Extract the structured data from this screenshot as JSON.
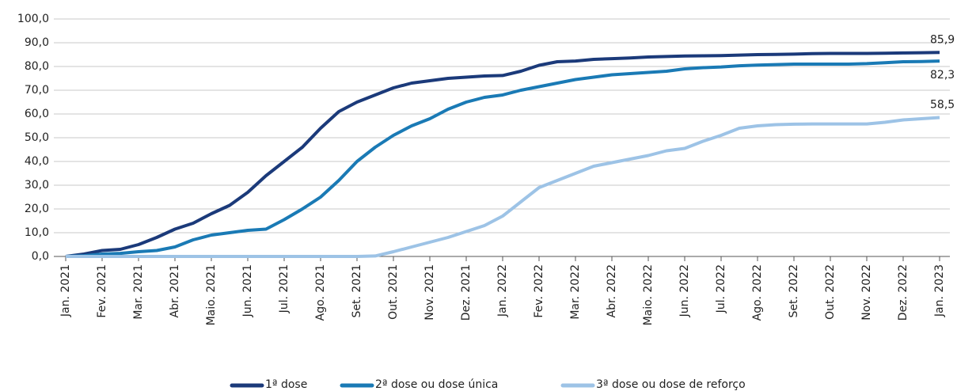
{
  "chart_data": {
    "type": "line",
    "categories": [
      "Jan. 2021",
      null,
      "Fev. 2021",
      null,
      "Mar. 2021",
      null,
      "Abr. 2021",
      null,
      "Maio. 2021",
      null,
      "Jun. 2021",
      null,
      "Jul. 2021",
      null,
      "Ago. 2021",
      null,
      "Set. 2021",
      null,
      "Out. 2021",
      null,
      "Nov. 2021",
      null,
      "Dez. 2021",
      null,
      "Jan. 2022",
      null,
      "Fev. 2022",
      null,
      "Mar. 2022",
      null,
      "Abr. 2022",
      null,
      "Maio. 2022",
      null,
      "Jun. 2022",
      null,
      "Jul. 2022",
      null,
      "Ago. 2022",
      null,
      "Set. 2022",
      null,
      "Out. 2022",
      null,
      "Nov. 2022",
      null,
      "Dez. 2022",
      null,
      "Jan. 2023"
    ],
    "series": [
      {
        "name": "1ª dose",
        "color": "#1b3a7a",
        "end_label": "85,9",
        "values": [
          0,
          1,
          2.5,
          3,
          5,
          8,
          11.5,
          14,
          18,
          21.5,
          27,
          34,
          40,
          46,
          54,
          61,
          65,
          68,
          71,
          73,
          74,
          75,
          75.5,
          76,
          76.2,
          78,
          80.5,
          82,
          82.3,
          83,
          83.3,
          83.6,
          84,
          84.2,
          84.4,
          84.5,
          84.6,
          84.8,
          85,
          85.1,
          85.2,
          85.4,
          85.5,
          85.5,
          85.5,
          85.6,
          85.7,
          85.8,
          85.9
        ]
      },
      {
        "name": "2ª dose ou dose única",
        "color": "#1a7ab5",
        "end_label": "82,3",
        "values": [
          0,
          0.3,
          1,
          1.3,
          2,
          2.5,
          4,
          7,
          9,
          10,
          11,
          11.5,
          15.5,
          20,
          25,
          32,
          40,
          46,
          51,
          55,
          58,
          62,
          65,
          67,
          68,
          70,
          71.5,
          73,
          74.5,
          75.5,
          76.5,
          77,
          77.5,
          78,
          79,
          79.5,
          79.8,
          80.3,
          80.6,
          80.8,
          81,
          81,
          81,
          81,
          81.2,
          81.6,
          82,
          82.1,
          82.3
        ]
      },
      {
        "name": "3ª dose ou dose de reforço",
        "color": "#9dc3e6",
        "end_label": "58,5",
        "values": [
          0,
          0,
          0,
          0,
          0,
          0,
          0,
          0,
          0,
          0,
          0,
          0,
          0,
          0,
          0,
          0,
          0,
          0.2,
          2,
          4,
          6,
          8,
          10.5,
          13,
          17,
          23,
          29,
          32,
          35,
          38,
          39.5,
          41,
          42.5,
          44.5,
          45.5,
          48.5,
          51,
          54,
          55,
          55.5,
          55.7,
          55.8,
          55.8,
          55.8,
          55.8,
          56.5,
          57.5,
          58,
          58.5
        ]
      }
    ],
    "ylim": [
      0,
      100
    ],
    "yticks": [
      {
        "value": 0,
        "label": "0,0"
      },
      {
        "value": 10,
        "label": "10,0"
      },
      {
        "value": 20,
        "label": "20,0"
      },
      {
        "value": 30,
        "label": "30,0"
      },
      {
        "value": 40,
        "label": "40,0"
      },
      {
        "value": 50,
        "label": "50,0"
      },
      {
        "value": 60,
        "label": "60,0"
      },
      {
        "value": 70,
        "label": "70,0"
      },
      {
        "value": 80,
        "label": "80,0"
      },
      {
        "value": 90,
        "label": "90,0"
      },
      {
        "value": 100,
        "label": "100,0"
      }
    ],
    "grid": true
  }
}
